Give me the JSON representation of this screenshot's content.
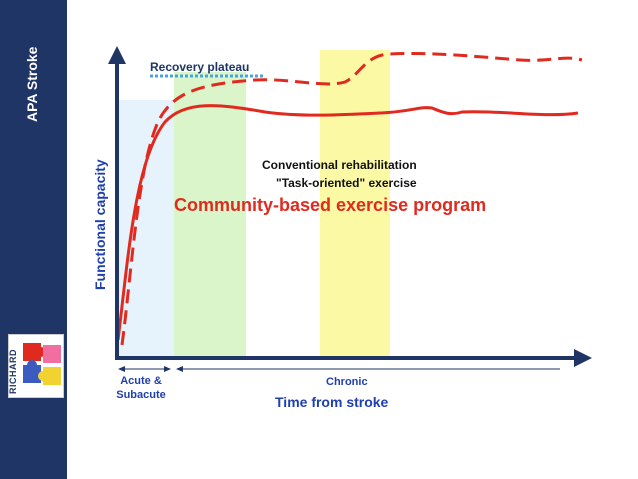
{
  "sidebar": {
    "title": "APA Stroke",
    "logo_text": "RICHARD"
  },
  "axes": {
    "y_label": "Functional capacity",
    "x_label": "Time from stroke"
  },
  "periods": {
    "acute": "Acute & Subacute",
    "chronic": "Chronic"
  },
  "annotations": {
    "recovery_plateau": "Recovery plateau",
    "conventional": "Conventional rehabilitation",
    "task_oriented": "\"Task-oriented\" exercise",
    "community": "Community-based exercise program"
  },
  "colors": {
    "sidebar": "#1f3566",
    "axis": "#1f3566",
    "curve": "#e12a1f",
    "acute_band": "#e6f3fc",
    "green_band": "#d9f5c9",
    "yellow_band": "#fbf9a3",
    "plateau_line": "#4aa3df"
  },
  "icons": [
    "puzzle-logo-icon"
  ]
}
